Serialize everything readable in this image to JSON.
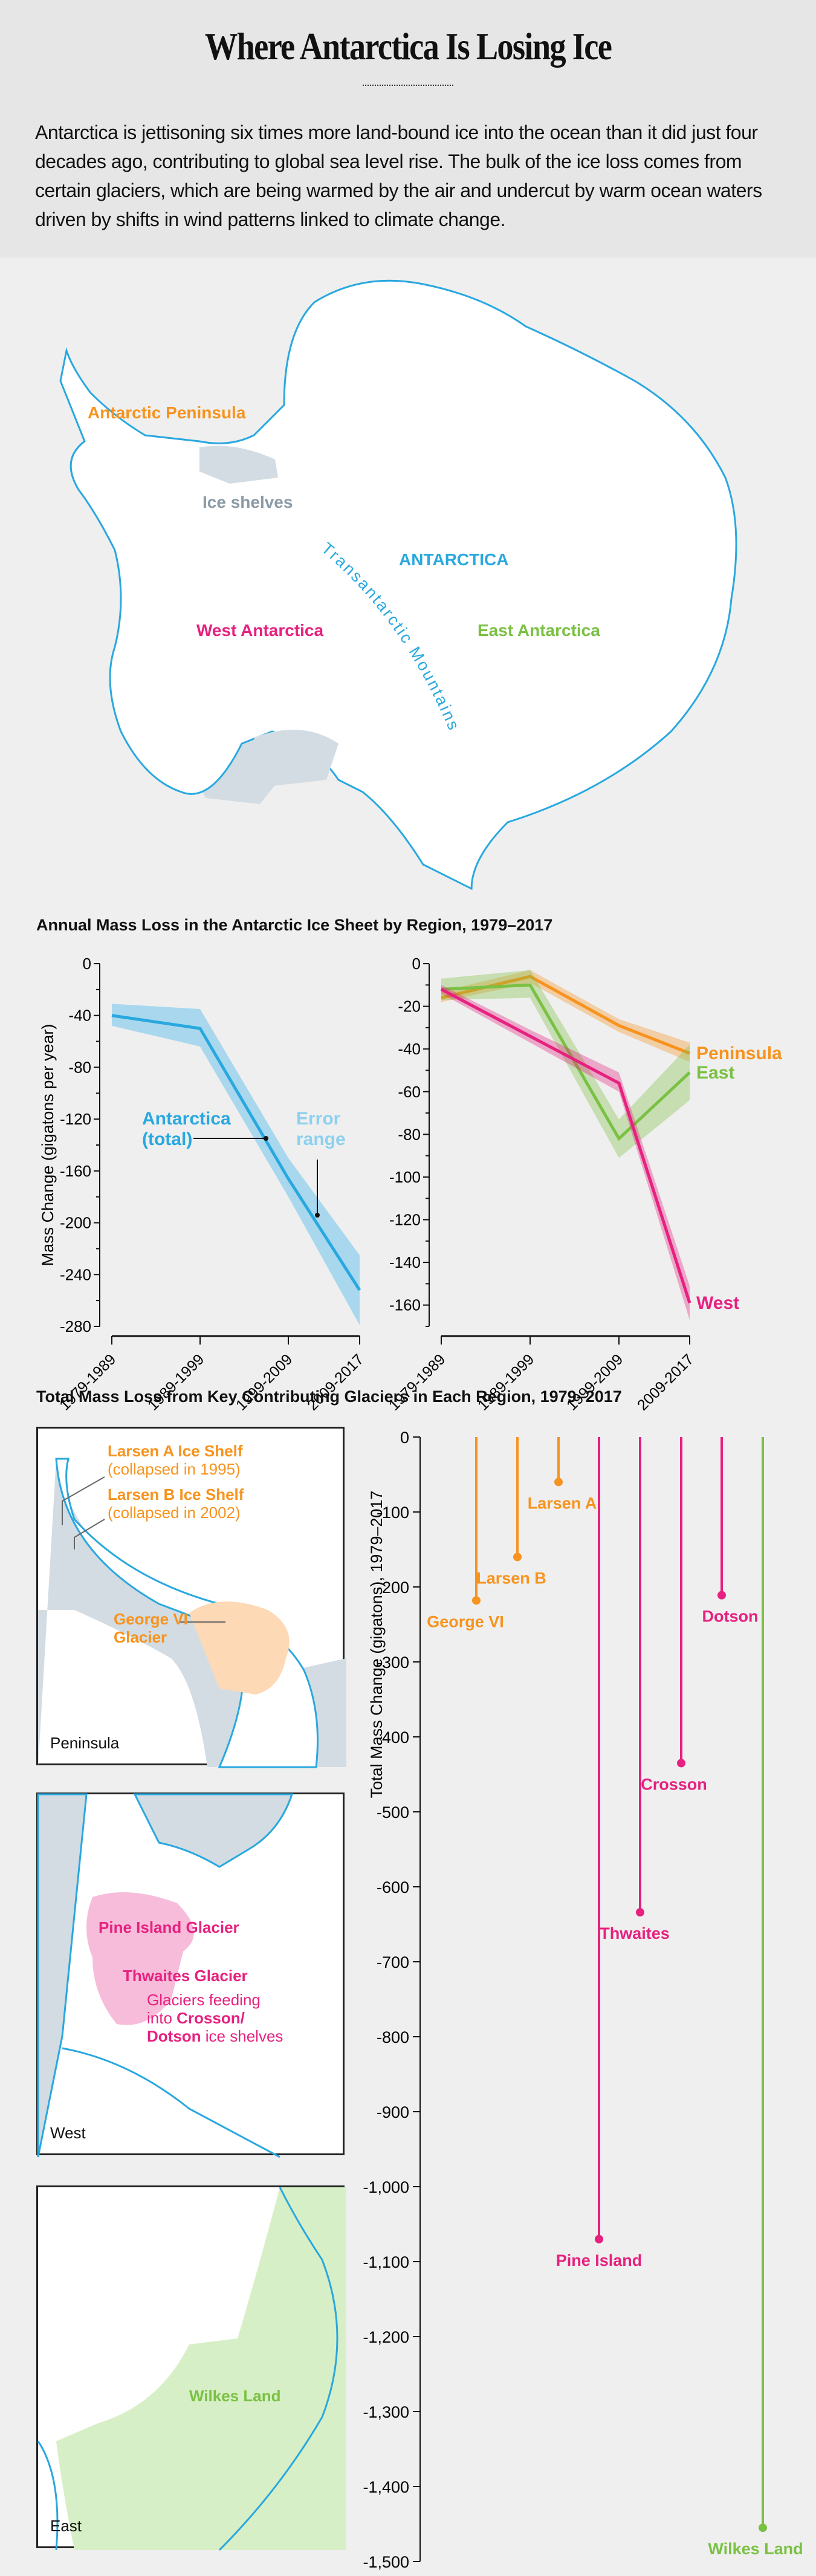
{
  "header": {
    "title": "Where Antarctica Is Losing Ice",
    "intro": "Antarctica is jettisoning six times more land-bound ice into the ocean than it did just four decades ago, contributing to global sea level rise. The bulk of the ice loss comes from certain glaciers, which are being warmed by the air and undercut by warm ocean waters driven by shifts in wind patterns linked to climate change."
  },
  "map": {
    "peninsula": "Antarctic Peninsula",
    "ice_shelves": "Ice shelves",
    "antarctica": "ANTARCTICA",
    "west": "West Antarctica",
    "east": "East Antarctica",
    "mountains": "Transantarctic Mountains"
  },
  "colors": {
    "blue": "#29a8df",
    "band": "#a9d8ee",
    "orange": "#f7931e",
    "green": "#7ac143",
    "pink": "#e6217f",
    "shelf": "#d3dce2"
  },
  "chart_data": [
    {
      "type": "line",
      "title": "Annual Mass Loss in the Antarctic Ice Sheet by Region, 1979–2017",
      "ylabel": "Mass Change (gigatons per year)",
      "categories": [
        "1979-1989",
        "1989-1999",
        "1999-2009",
        "2009-2017"
      ],
      "ylim": [
        -280,
        0
      ],
      "yticks": [
        0,
        -40,
        -80,
        -120,
        -160,
        -200,
        -240,
        -280
      ],
      "series": [
        {
          "name": "Antarctica (total)",
          "values": [
            -40,
            -50,
            -166,
            -252
          ],
          "lower": [
            -48,
            -64,
            -180,
            -279
          ],
          "upper": [
            -31,
            -35,
            -150,
            -225
          ]
        }
      ],
      "annotations": [
        "Antarctica (total)",
        "Error range"
      ]
    },
    {
      "type": "line",
      "categories": [
        "1979-1989",
        "1989-1999",
        "1999-2009",
        "2009-2017"
      ],
      "ylim": [
        -170,
        0
      ],
      "yticks": [
        0,
        -20,
        -40,
        -60,
        -80,
        -100,
        -120,
        -140,
        -160
      ],
      "series": [
        {
          "name": "Peninsula",
          "color": "#f7931e",
          "values": [
            -16,
            -6,
            -29,
            -42
          ],
          "lower": [
            -18,
            -9,
            -32,
            -46
          ],
          "upper": [
            -13,
            -3,
            -26,
            -37
          ]
        },
        {
          "name": "East",
          "color": "#7ac143",
          "values": [
            -12,
            -10,
            -82,
            -51
          ],
          "lower": [
            -17,
            -16,
            -91,
            -64
          ],
          "upper": [
            -7,
            -3,
            -73,
            -38
          ]
        },
        {
          "name": "West",
          "color": "#e6217f",
          "values": [
            -12,
            -34,
            -56,
            -159
          ],
          "lower": [
            -14,
            -37,
            -60,
            -167
          ],
          "upper": [
            -10,
            -31,
            -51,
            -151
          ]
        }
      ]
    },
    {
      "type": "bar",
      "title": "Total Mass Loss from Key Contributing Glaciers in Each Region, 1979–2017",
      "ylabel": "Total Mass Change (gigatons), 1979–2017",
      "ylim": [
        -1500,
        0
      ],
      "yticks": [
        "0",
        "-100",
        "-200",
        "-300",
        "-400",
        "-500",
        "-600",
        "-700",
        "-800",
        "-900",
        "-1,000",
        "-1,100",
        "-1,200",
        "-1,300",
        "-1,400",
        "-1,500"
      ],
      "bars": [
        {
          "name": "George VI",
          "value": -218,
          "region": "Peninsula"
        },
        {
          "name": "Larsen B",
          "value": -160,
          "region": "Peninsula"
        },
        {
          "name": "Larsen A",
          "value": -60,
          "region": "Peninsula"
        },
        {
          "name": "Pine Island",
          "value": -1070,
          "region": "West"
        },
        {
          "name": "Thwaites",
          "value": -634,
          "region": "West"
        },
        {
          "name": "Crosson",
          "value": -435,
          "region": "West"
        },
        {
          "name": "Dotson",
          "value": -211,
          "region": "West"
        },
        {
          "name": "Wilkes Land",
          "value": -1455,
          "region": "East"
        }
      ]
    }
  ],
  "panels": {
    "peninsula": {
      "label": "Peninsula",
      "larsen_a": "Larsen A Ice Shelf",
      "larsen_a_note": "(collapsed in 1995)",
      "larsen_b": "Larsen B Ice Shelf",
      "larsen_b_note": "(collapsed in 2002)",
      "george": "George VI",
      "george2": "Glacier"
    },
    "west": {
      "label": "West",
      "pine": "Pine Island Glacier",
      "thwaites": "Thwaites Glacier",
      "feed1": "Glaciers feeding",
      "feed2": "into ",
      "feed3": "Crosson/",
      "feed4": "Dotson",
      "feed5": "ice shelves"
    },
    "east": {
      "label": "East",
      "wilkes": "Wilkes Land"
    }
  }
}
